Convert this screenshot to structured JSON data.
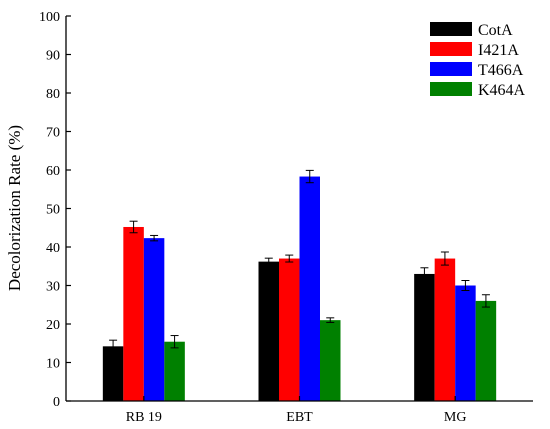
{
  "chart_data": {
    "type": "bar",
    "title": "",
    "xlabel": "",
    "ylabel": "Decolorization Rate (%)",
    "ylim": [
      0,
      100
    ],
    "yticks": [
      0,
      10,
      20,
      30,
      40,
      50,
      60,
      70,
      80,
      90,
      100
    ],
    "categories": [
      "RB 19",
      "EBT",
      "MG"
    ],
    "legend_position": "top-right",
    "grid": false,
    "series": [
      {
        "name": "CotA",
        "color": "#000000",
        "values": [
          14.2,
          36.2,
          33.0
        ],
        "errors": [
          1.6,
          0.9,
          1.6
        ]
      },
      {
        "name": "I421A",
        "color": "#ff0000",
        "values": [
          45.2,
          37.0,
          37.0
        ],
        "errors": [
          1.5,
          0.9,
          1.7
        ]
      },
      {
        "name": "T466A",
        "color": "#0000ff",
        "values": [
          42.3,
          58.3,
          30.0
        ],
        "errors": [
          0.7,
          1.6,
          1.3
        ]
      },
      {
        "name": "K464A",
        "color": "#008000",
        "values": [
          15.4,
          21.0,
          26.0
        ],
        "errors": [
          1.6,
          0.6,
          1.6
        ]
      }
    ]
  }
}
